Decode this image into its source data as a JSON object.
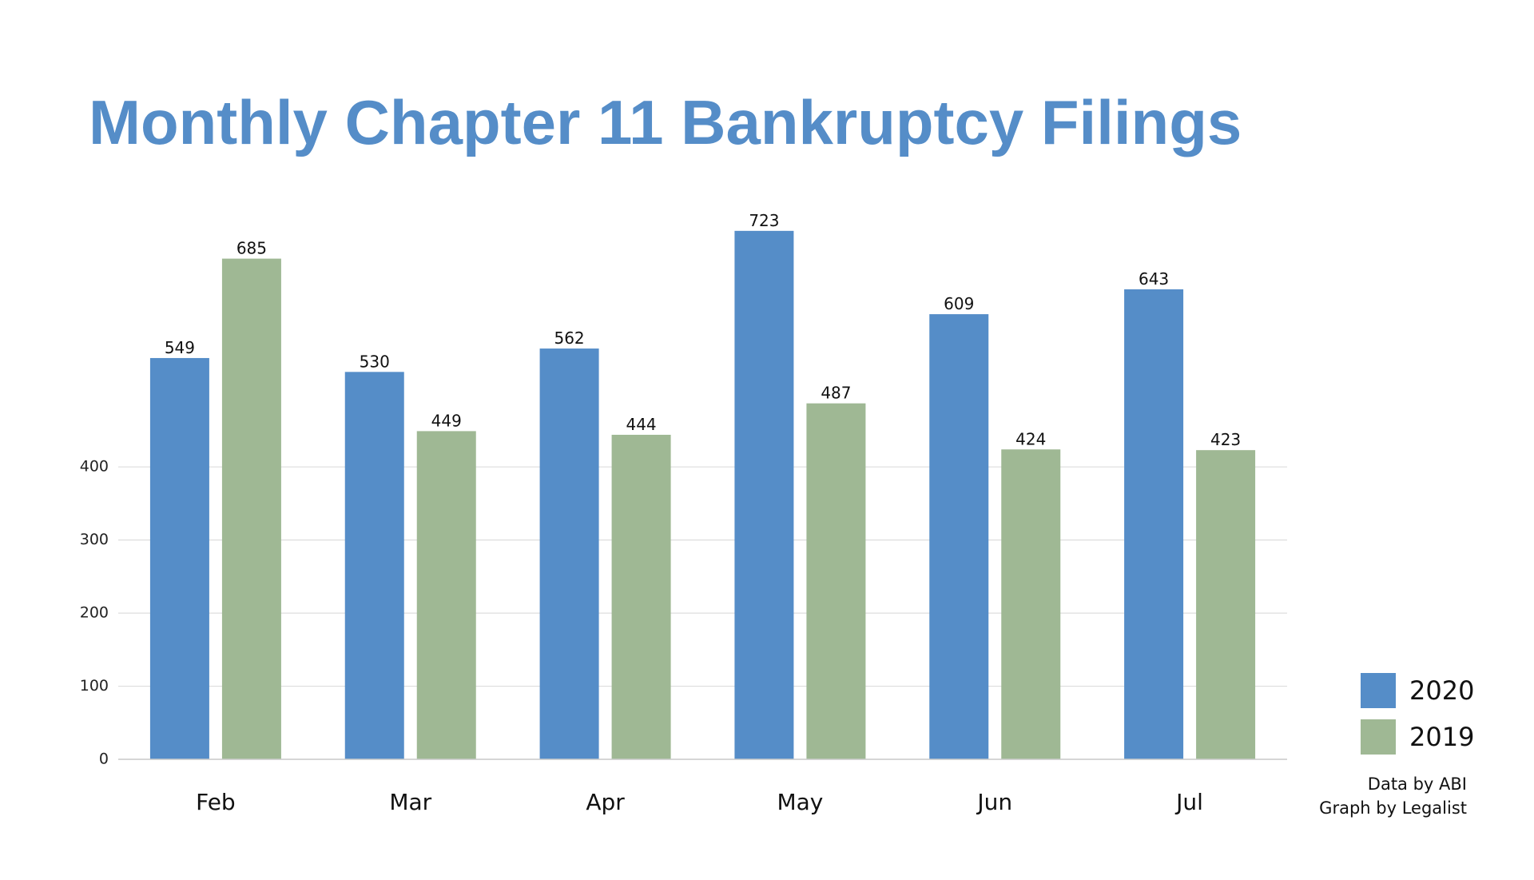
{
  "chart_data": {
    "type": "bar",
    "title": "Monthly Chapter 11 Bankruptcy Filings",
    "categories": [
      "Feb",
      "Mar",
      "Apr",
      "May",
      "Jun",
      "Jul"
    ],
    "series": [
      {
        "name": "2020",
        "color": "#558dc8",
        "values": [
          549,
          530,
          562,
          723,
          609,
          643
        ]
      },
      {
        "name": "2019",
        "color": "#9fb894",
        "values": [
          685,
          449,
          444,
          487,
          424,
          423
        ]
      }
    ],
    "ylim": [
      0,
      760
    ],
    "yticks": [
      0,
      100,
      200,
      300,
      400
    ],
    "grid": true,
    "legend": "right",
    "annotations": [
      "Data by ABI",
      "Graph by Legalist"
    ]
  }
}
